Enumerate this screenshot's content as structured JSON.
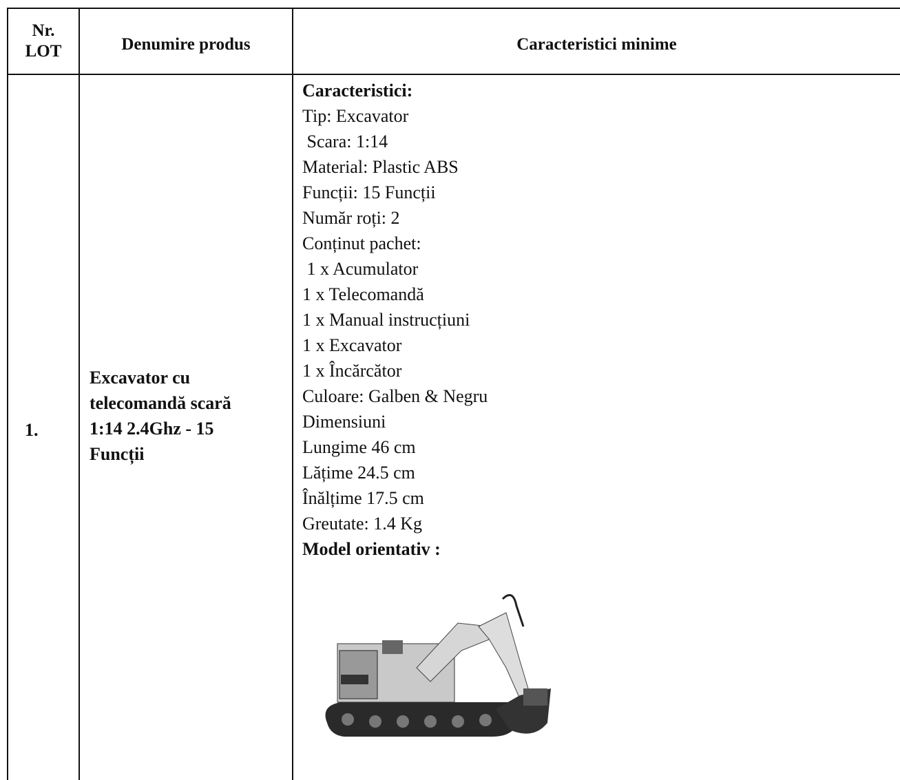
{
  "table": {
    "header": [
      "Nr. LOT",
      "Denumire produs",
      "Caracteristici minime"
    ],
    "rows": [
      {
        "nr": "1.",
        "name_lines": [
          "Excavator cu",
          "telecomandă scară",
          "1:14 2.4Ghz - 15",
          "Funcții"
        ],
        "heading": "Caracteristici:",
        "lines": [
          "Tip: Excavator",
          " Scara: 1:14",
          "Material: Plastic ABS",
          "Funcții: 15 Funcții",
          "Număr roți: 2",
          "Conținut pachet:",
          " 1 x Acumulator",
          "1 x Telecomandă",
          "1 x Manual instrucțiuni",
          "1 x Excavator",
          "1 x Încărcător",
          "Culoare: Galben & Negru",
          "Dimensiuni",
          "Lungime 46 cm",
          "Lățime 24.5 cm",
          "Înălțime 17.5 cm",
          "Greutate: 1.4 Kg"
        ],
        "footer": "Model orientativ :"
      }
    ]
  }
}
